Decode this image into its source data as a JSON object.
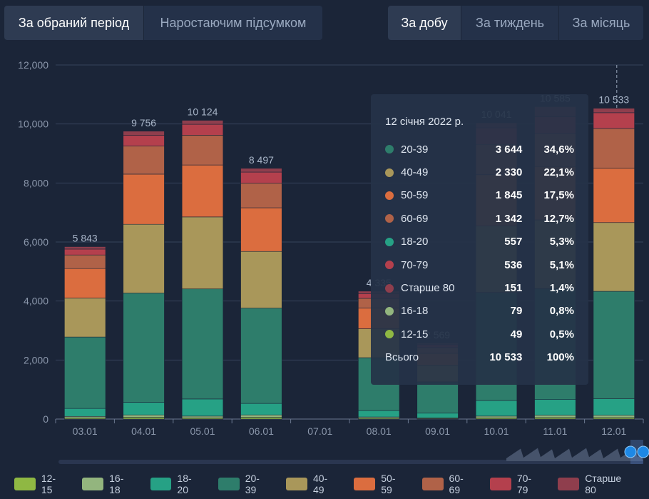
{
  "period_tabs": [
    "За обраний період",
    "Наростаючим підсумком"
  ],
  "interval_tabs": [
    "За добу",
    "За тиждень",
    "За місяць"
  ],
  "colors": {
    "12-15": "#8fb843",
    "16-18": "#93b57e",
    "18-20": "#26a185",
    "20-39": "#2e7d6b",
    "40-49": "#a9975a",
    "50-59": "#db6d3f",
    "60-69": "#b06248",
    "70-79": "#b4404d",
    "Старше 80": "#8f3e4d"
  },
  "chart_data": {
    "type": "bar",
    "stacked": true,
    "categories": [
      "03.01",
      "04.01",
      "05.01",
      "06.01",
      "07.01",
      "08.01",
      "09.01",
      "10.01",
      "11.01",
      "12.01"
    ],
    "yticks": [
      "0",
      "2,000",
      "4,000",
      "6,000",
      "8,000",
      "10,000",
      "12,000"
    ],
    "ylim": [
      0,
      12000
    ],
    "grid": true,
    "totals": [
      "5 843",
      "9 756",
      "10 124",
      "8 497",
      "",
      "4 335",
      "2 569",
      "10 041",
      "10 585",
      "10 533"
    ],
    "series": [
      {
        "name": "12-15",
        "values": [
          40,
          60,
          40,
          60,
          0,
          30,
          20,
          40,
          50,
          49
        ]
      },
      {
        "name": "16-18",
        "values": [
          50,
          80,
          60,
          80,
          0,
          40,
          20,
          60,
          80,
          79
        ]
      },
      {
        "name": "18-20",
        "values": [
          270,
          430,
          580,
          390,
          0,
          220,
          160,
          530,
          540,
          557
        ]
      },
      {
        "name": "20-39",
        "values": [
          2420,
          3700,
          3730,
          3230,
          0,
          1790,
          1060,
          3660,
          3750,
          3644
        ]
      },
      {
        "name": "40-49",
        "values": [
          1320,
          2330,
          2440,
          1920,
          0,
          980,
          560,
          2250,
          2330,
          2330
        ]
      },
      {
        "name": "50-59",
        "values": [
          1000,
          1700,
          1760,
          1480,
          0,
          700,
          410,
          1740,
          1810,
          1845
        ]
      },
      {
        "name": "60-69",
        "values": [
          460,
          950,
          1010,
          830,
          0,
          330,
          190,
          1030,
          1120,
          1342
        ]
      },
      {
        "name": "70-79",
        "values": [
          200,
          370,
          370,
          380,
          0,
          160,
          100,
          560,
          570,
          536
        ]
      },
      {
        "name": "Старше 80",
        "values": [
          83,
          136,
          134,
          127,
          0,
          85,
          49,
          171,
          335,
          151
        ]
      }
    ]
  },
  "tooltip": {
    "date": "12 січня 2022 р.",
    "rows": [
      {
        "name": "20-39",
        "value": "3 644",
        "pct": "34,6%"
      },
      {
        "name": "40-49",
        "value": "2 330",
        "pct": "22,1%"
      },
      {
        "name": "50-59",
        "value": "1 845",
        "pct": "17,5%"
      },
      {
        "name": "60-69",
        "value": "1 342",
        "pct": "12,7%"
      },
      {
        "name": "18-20",
        "value": "557",
        "pct": "5,3%"
      },
      {
        "name": "70-79",
        "value": "536",
        "pct": "5,1%"
      },
      {
        "name": "Старше 80",
        "value": "151",
        "pct": "1,4%"
      },
      {
        "name": "16-18",
        "value": "79",
        "pct": "0,8%"
      },
      {
        "name": "12-15",
        "value": "49",
        "pct": "0,5%"
      }
    ],
    "total_label": "Всього",
    "total_value": "10 533",
    "total_pct": "100%"
  },
  "legend": [
    "12-15",
    "16-18",
    "18-20",
    "20-39",
    "40-49",
    "50-59",
    "60-69",
    "70-79",
    "Старше 80"
  ]
}
